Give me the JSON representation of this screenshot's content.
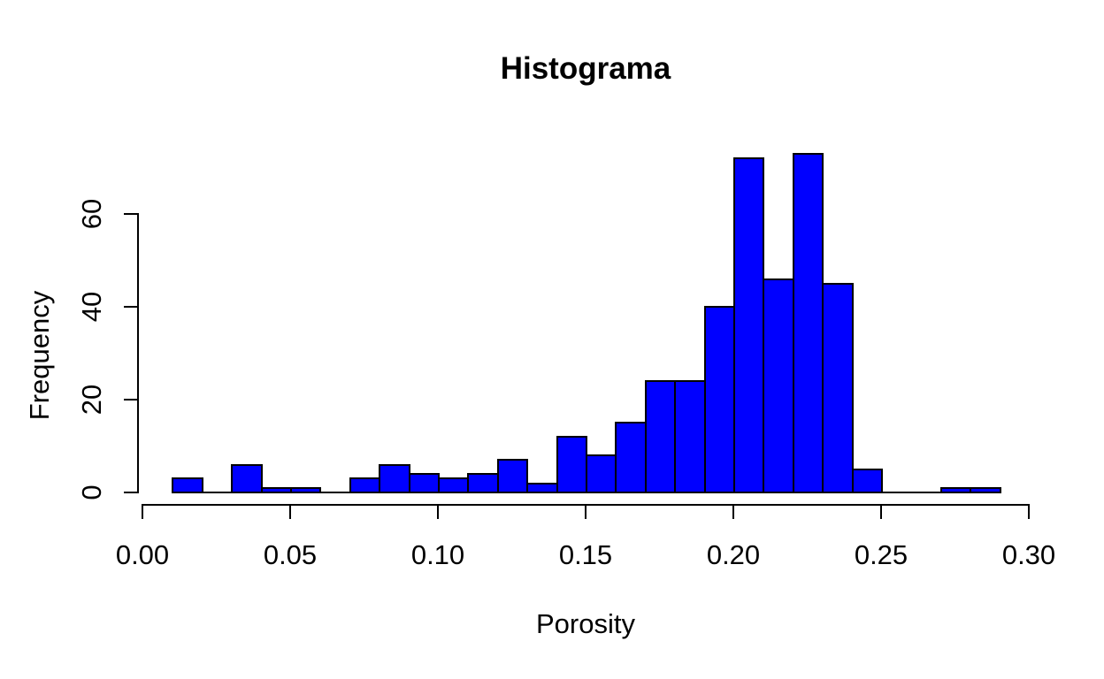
{
  "chart_data": {
    "type": "bar",
    "chart_kind": "histogram",
    "title": "Histograma",
    "xlabel": "Porosity",
    "ylabel": "Frequency",
    "bar_fill_color": "#0000FF",
    "bar_border_color": "#000000",
    "background_color": "#FFFFFF",
    "grid": "off",
    "legend": "none",
    "xlim": [
      0.0,
      0.3
    ],
    "ylim": [
      0,
      73
    ],
    "x_ticks": [
      0.0,
      0.05,
      0.1,
      0.15,
      0.2,
      0.25,
      0.3
    ],
    "x_tick_labels": [
      "0.00",
      "0.05",
      "0.10",
      "0.15",
      "0.20",
      "0.25",
      "0.30"
    ],
    "y_ticks": [
      0,
      20,
      40,
      60
    ],
    "y_tick_labels": [
      "0",
      "20",
      "40",
      "60"
    ],
    "bin_width": 0.01,
    "bins": [
      {
        "from": 0.01,
        "to": 0.02,
        "count": 3
      },
      {
        "from": 0.02,
        "to": 0.03,
        "count": 0
      },
      {
        "from": 0.03,
        "to": 0.04,
        "count": 6
      },
      {
        "from": 0.04,
        "to": 0.05,
        "count": 1
      },
      {
        "from": 0.05,
        "to": 0.06,
        "count": 1
      },
      {
        "from": 0.06,
        "to": 0.07,
        "count": 0
      },
      {
        "from": 0.07,
        "to": 0.08,
        "count": 3
      },
      {
        "from": 0.08,
        "to": 0.09,
        "count": 6
      },
      {
        "from": 0.09,
        "to": 0.1,
        "count": 4
      },
      {
        "from": 0.1,
        "to": 0.11,
        "count": 3
      },
      {
        "from": 0.11,
        "to": 0.12,
        "count": 4
      },
      {
        "from": 0.12,
        "to": 0.13,
        "count": 7
      },
      {
        "from": 0.13,
        "to": 0.14,
        "count": 2
      },
      {
        "from": 0.14,
        "to": 0.15,
        "count": 12
      },
      {
        "from": 0.15,
        "to": 0.16,
        "count": 8
      },
      {
        "from": 0.16,
        "to": 0.17,
        "count": 15
      },
      {
        "from": 0.17,
        "to": 0.18,
        "count": 24
      },
      {
        "from": 0.18,
        "to": 0.19,
        "count": 24
      },
      {
        "from": 0.19,
        "to": 0.2,
        "count": 40
      },
      {
        "from": 0.2,
        "to": 0.21,
        "count": 72
      },
      {
        "from": 0.21,
        "to": 0.22,
        "count": 46
      },
      {
        "from": 0.22,
        "to": 0.23,
        "count": 73
      },
      {
        "from": 0.23,
        "to": 0.24,
        "count": 45
      },
      {
        "from": 0.24,
        "to": 0.25,
        "count": 5
      },
      {
        "from": 0.25,
        "to": 0.26,
        "count": 0
      },
      {
        "from": 0.26,
        "to": 0.27,
        "count": 0
      },
      {
        "from": 0.27,
        "to": 0.28,
        "count": 1
      },
      {
        "from": 0.28,
        "to": 0.29,
        "count": 1
      }
    ]
  }
}
